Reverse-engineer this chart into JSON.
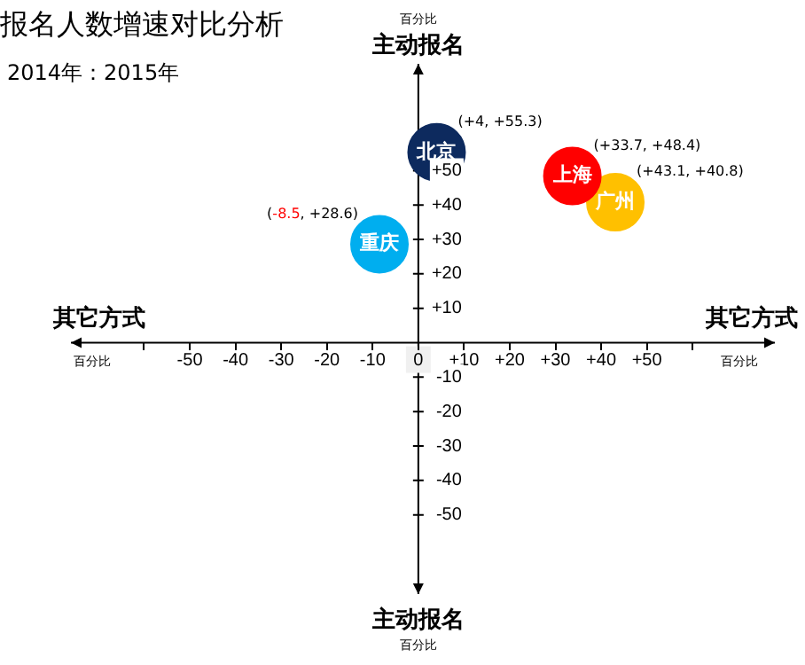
{
  "chart_data": {
    "type": "scatter",
    "title": "报名人数增速对比分析",
    "subtitle": "2014年：2015年",
    "xlabel": "其它方式",
    "ylabel": "主动报名",
    "series": [
      {
        "name": "北京",
        "color": "#0d2a5e",
        "x": [
          4
        ],
        "values": [
          55.3
        ]
      },
      {
        "name": "上海",
        "color": "#ff0000",
        "x": [
          33.7
        ],
        "values": [
          48.4
        ]
      },
      {
        "name": "广州",
        "color": "#ffc000",
        "x": [
          43.1
        ],
        "values": [
          40.8
        ]
      },
      {
        "name": "重庆",
        "color": "#00aeef",
        "x": [
          -8.5
        ],
        "values": [
          28.6
        ]
      }
    ],
    "xlim": [
      -76,
      78
    ],
    "ylim": [
      -73,
      81
    ],
    "xticks": [
      {
        "value": -60,
        "label": null
      },
      -50,
      -40,
      -30,
      -20,
      -10,
      0,
      {
        "value": 10,
        "label": "+10"
      },
      {
        "value": 20,
        "label": "+20"
      },
      {
        "value": 30,
        "label": "+30"
      },
      {
        "value": 40,
        "label": "+40"
      },
      {
        "value": 50,
        "label": "+50"
      },
      {
        "value": 60,
        "label": null
      }
    ],
    "yticks": [
      -50,
      -40,
      -30,
      -20,
      -10,
      {
        "value": 10,
        "label": "+10"
      },
      {
        "value": 20,
        "label": "+20"
      },
      {
        "value": 30,
        "label": "+30"
      },
      {
        "value": 40,
        "label": "+40"
      },
      {
        "value": 50,
        "label": "+50"
      }
    ],
    "annotations": [
      "百分比",
      {
        "text": "(+4, +55.3)",
        "x": 4,
        "y": 55.3
      },
      {
        "text": "(+33.7, +48.4)",
        "x": 33.7,
        "y": 48.4
      },
      {
        "text": "(+43.1, +40.8)",
        "x": 43.1,
        "y": 40.8
      },
      {
        "text": "(-8.5, +28.6)",
        "x": -8.5,
        "y": 28.6
      }
    ],
    "grid": false,
    "legend": false,
    "marker": "circle"
  }
}
